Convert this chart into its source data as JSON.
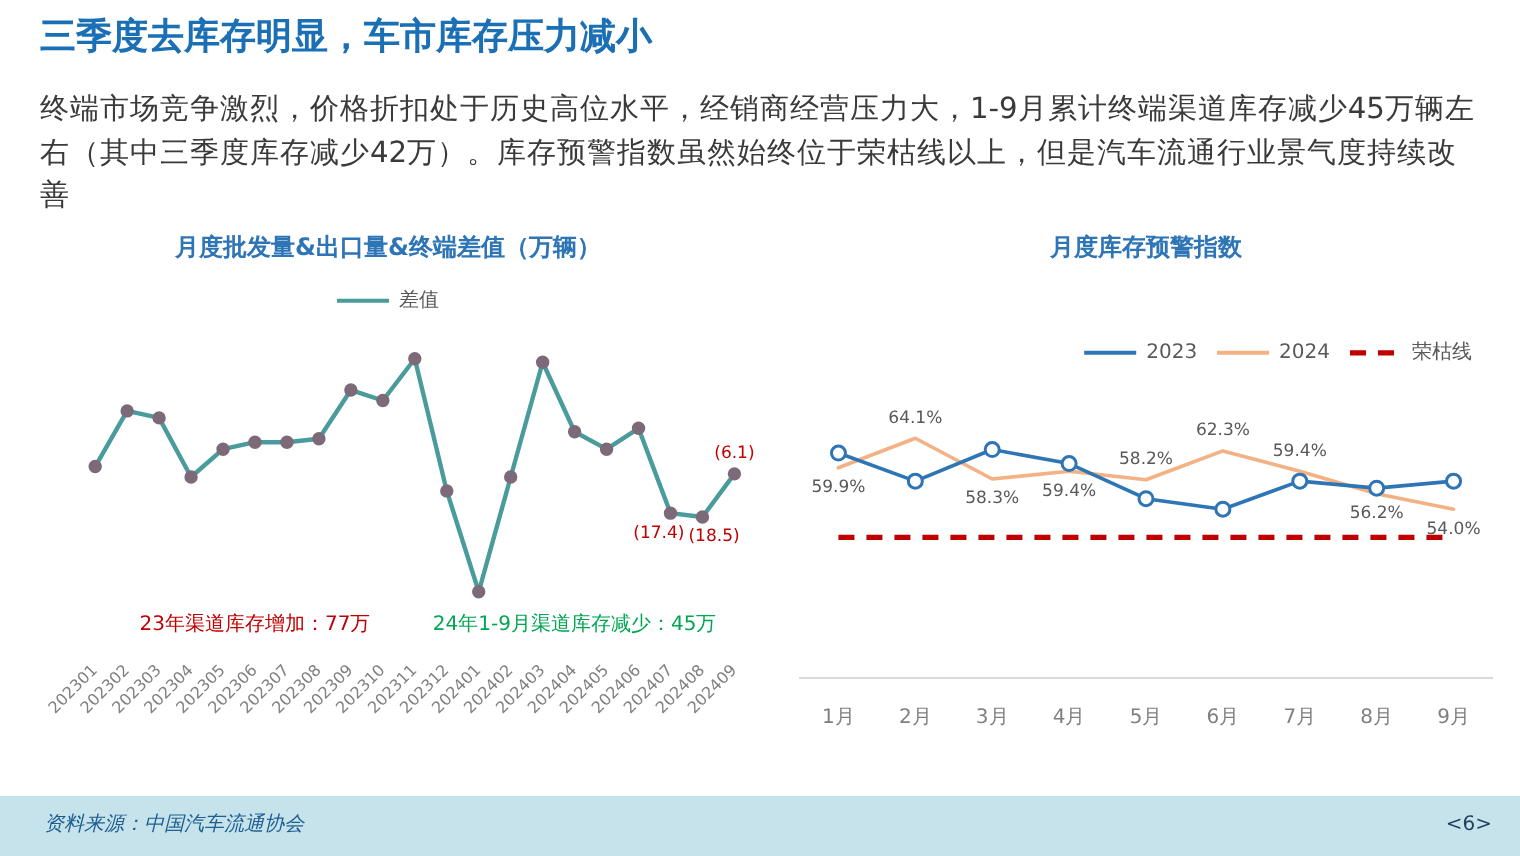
{
  "chart_data": [
    {
      "type": "other",
      "title": "三季度去库存明显，车市库存压力减小",
      "subtitle": "终端市场竞争激烈，价格折扣处于历史高位水平，经销商经营压力大，1-9月累计终端渠道库存减少45万辆左右（其中三季度库存减少42万）。库存预警指数虽然始终位于荣枯线以上，但是汽车流通行业景气度持续改善",
      "annotations": [
        "资料来源：中国汽车流通协会",
        "<6>"
      ]
    },
    {
      "type": "line",
      "title": "月度批发量&出口量&终端差值（万辆）",
      "categories": [
        "202301",
        "202302",
        "202303",
        "202304",
        "202305",
        "202306",
        "202307",
        "202308",
        "202309",
        "202310",
        "202311",
        "202312",
        "202401",
        "202402",
        "202403",
        "202404",
        "202405",
        "202406",
        "202407",
        "202408",
        "202409"
      ],
      "series": [
        {
          "name": "差值",
          "color": "#4a9b9b",
          "values": [
            -4,
            12,
            10,
            -7,
            1,
            3,
            3,
            4,
            18,
            15,
            27,
            -11,
            -40,
            -7,
            26,
            6,
            1,
            7,
            -17.4,
            -18.5,
            -6.1
          ],
          "value_labels": [
            null,
            null,
            null,
            null,
            null,
            null,
            null,
            null,
            null,
            null,
            null,
            null,
            null,
            null,
            null,
            null,
            null,
            null,
            "(17.4)",
            "(18.5)",
            "(6.1)"
          ]
        }
      ],
      "tick_labels": "x",
      "legend": "top",
      "marker": "circle",
      "annotations": [
        "23年渠道库存增加：77万",
        "24年1-9月渠道库存减少：45万"
      ]
    },
    {
      "type": "line",
      "title": "月度库存预警指数",
      "categories": [
        "1月",
        "2月",
        "3月",
        "4月",
        "5月",
        "6月",
        "7月",
        "8月",
        "9月"
      ],
      "series": [
        {
          "name": "2023",
          "color": "#2e75b6",
          "marker": "circle",
          "values": [
            62,
            58,
            62.5,
            60.5,
            55.5,
            54,
            58,
            57,
            58
          ]
        },
        {
          "name": "2024",
          "color": "#f4b183",
          "marker": "none",
          "values": [
            59.9,
            64.1,
            58.3,
            59.4,
            58.2,
            62.3,
            59.4,
            56.2,
            54.0
          ],
          "value_labels": [
            "59.9%",
            "64.1%",
            "58.3%",
            "59.4%",
            "58.2%",
            "62.3%",
            "59.4%",
            "56.2%",
            "54.0%"
          ]
        }
      ],
      "tick_labels": "x",
      "legend": "top right",
      "ref_lines": [
        {
          "axis": "y",
          "value": 50,
          "label": "荣枯线",
          "color": "#c00000",
          "line_style": "dashed"
        }
      ]
    }
  ]
}
